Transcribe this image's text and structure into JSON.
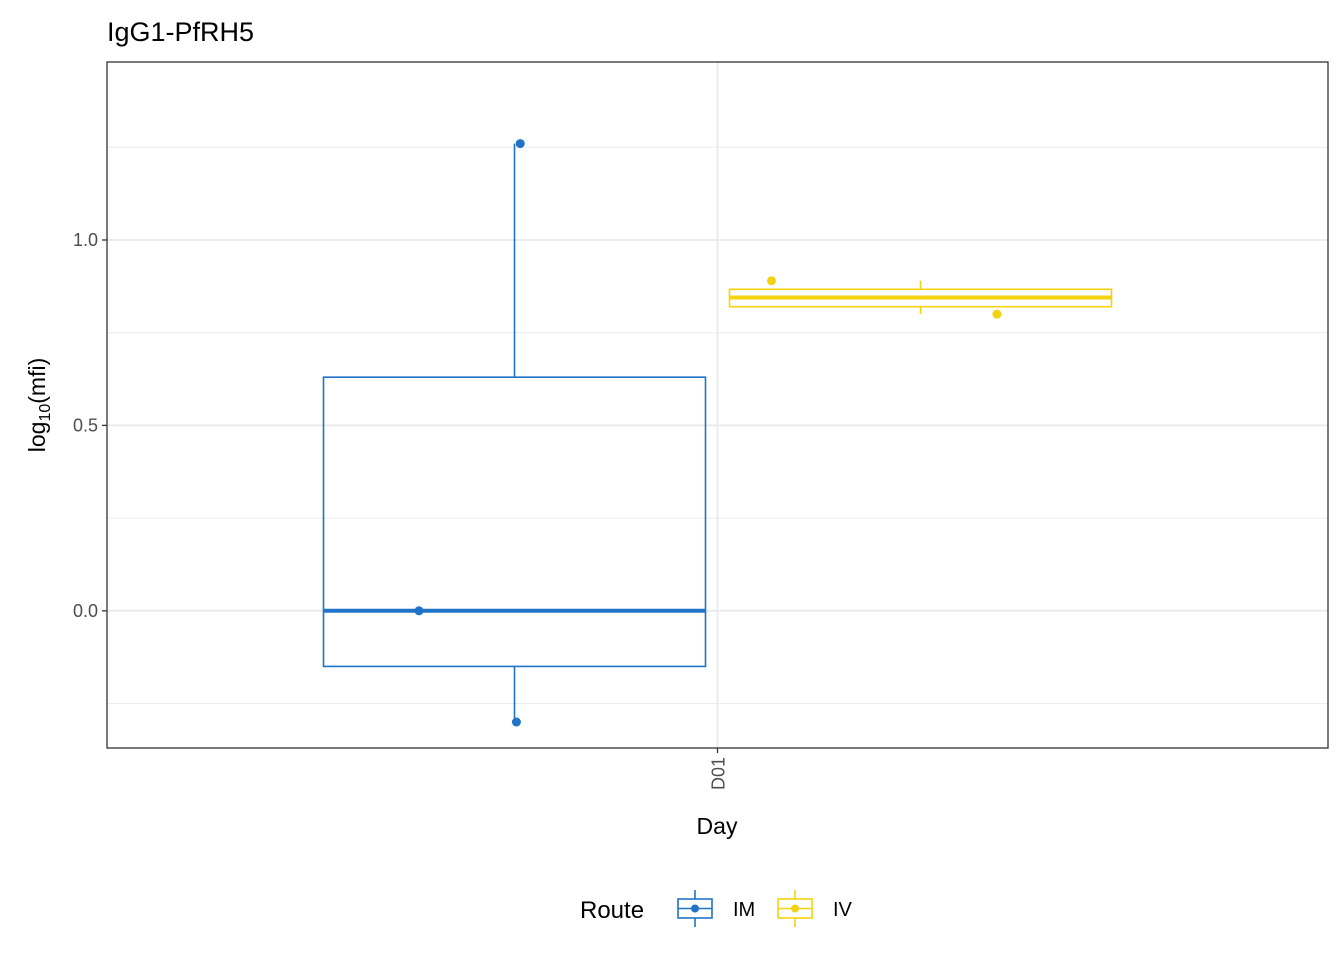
{
  "chart_data": {
    "type": "boxplot",
    "title": "IgG1-PfRH5",
    "xlabel": "Day",
    "ylabel": "log10(mfi)",
    "ylabel_base": "log",
    "ylabel_sub": "10",
    "ylabel_arg": "(mfi)",
    "categories": [
      "D01"
    ],
    "ylim": [
      -0.37,
      1.48
    ],
    "yticks": [
      0.0,
      0.5,
      1.0
    ],
    "ytick_labels": [
      "0.0",
      "0.5",
      "1.0"
    ],
    "grid": true,
    "legend": {
      "title": "Route",
      "position": "bottom",
      "entries": [
        "IM",
        "IV"
      ]
    },
    "series": [
      {
        "name": "IM",
        "color": "#1f74c8",
        "box": {
          "lower_whisker": -0.3,
          "q1": -0.15,
          "median": 0.0,
          "q3": 0.63,
          "upper_whisker": 1.26
        },
        "points": [
          1.26,
          0.0,
          -0.3
        ]
      },
      {
        "name": "IV",
        "color": "#f5d20f",
        "box": {
          "lower_whisker": 0.8,
          "q1": 0.82,
          "median": 0.845,
          "q3": 0.867,
          "upper_whisker": 0.89
        },
        "points": [
          0.89,
          0.8
        ]
      }
    ]
  }
}
